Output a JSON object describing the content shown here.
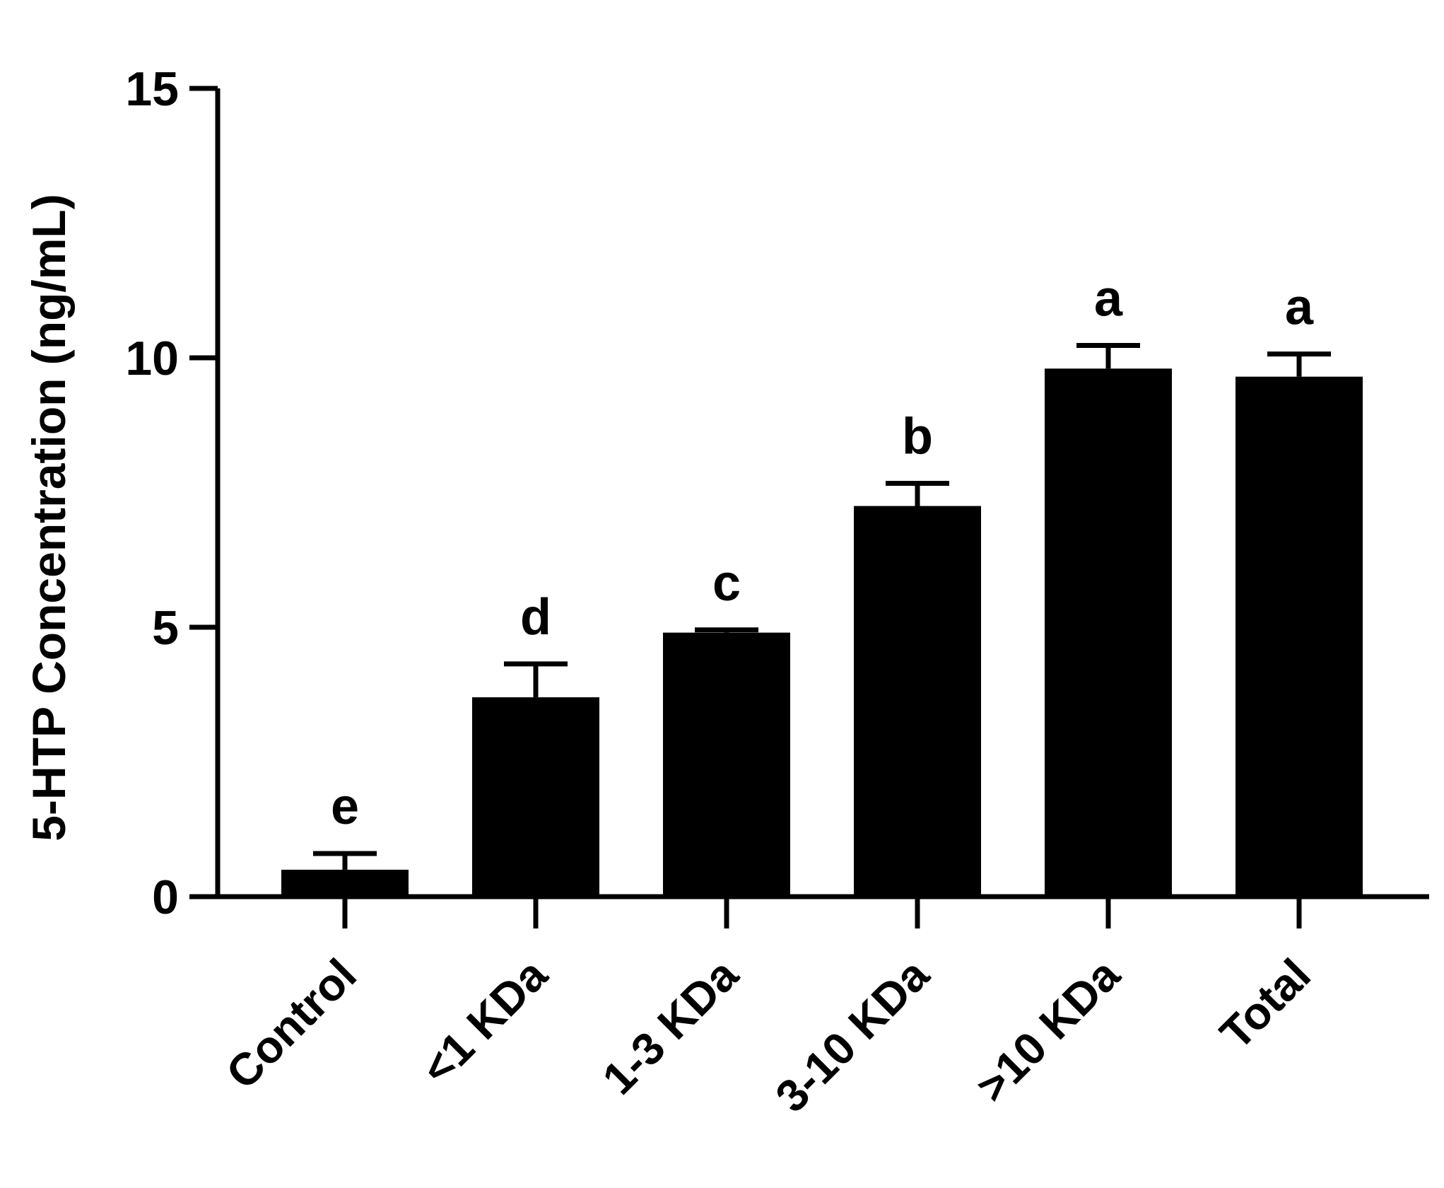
{
  "chart_data": {
    "type": "bar",
    "title": "",
    "xlabel": "",
    "ylabel": "5-HTP Concentration (ng/mL)",
    "ylim": [
      0,
      15
    ],
    "yticks": [
      0,
      5,
      10,
      15
    ],
    "grid": false,
    "legend": "none",
    "categories": [
      "Control",
      "<1 KDa",
      "1-3 KDa",
      "3-10 KDa",
      ">10 KDa",
      "Total"
    ],
    "values": [
      0.5,
      3.7,
      4.9,
      7.25,
      9.8,
      9.65
    ],
    "error_upper": [
      0.3,
      0.62,
      0.05,
      0.42,
      0.43,
      0.42
    ],
    "significance_letters": [
      "e",
      "d",
      "c",
      "b",
      "a",
      "a"
    ],
    "bar_color": "#000000",
    "axis_color": "#000000"
  }
}
